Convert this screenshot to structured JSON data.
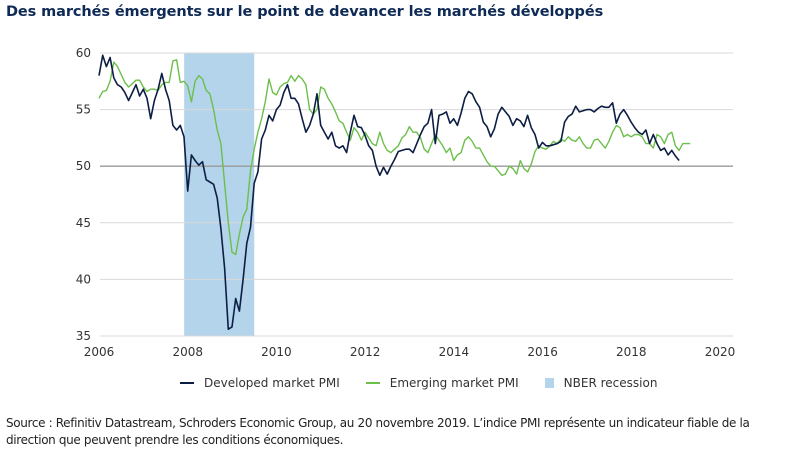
{
  "title": "Des marchés émergents sur le point de devancer les marchés développés",
  "source": "Source : Refinitiv Datastream, Schroders Economic Group, au 20 novembre 2019. L’indice PMI représente un indicateur fiable de la direction que peuvent prendre les conditions économiques.",
  "colors": {
    "developed": "#0d1e45",
    "emerging": "#6cbf4b",
    "recession": "#b3d4ea",
    "grid": "#d9d9d9",
    "axis50": "#9a9a9a"
  },
  "chart_data": {
    "type": "line",
    "title": "Des marchés émergents sur le point de devancer les marchés développés",
    "xlabel": "",
    "ylabel": "",
    "xlim": [
      2006,
      2020.3
    ],
    "ylim": [
      35,
      60
    ],
    "x_ticks": [
      "2006",
      "2008",
      "2010",
      "2012",
      "2014",
      "2016",
      "2018",
      "2020"
    ],
    "y_ticks": [
      "35",
      "40",
      "45",
      "50",
      "55",
      "60"
    ],
    "grid": true,
    "reference_line": 50,
    "legend_position": "bottom",
    "x_start": 2006.0,
    "x_step_years": 0.0833,
    "shaded_regions": [
      {
        "name": "NBER recession",
        "start": 2007.92,
        "end": 2009.5
      }
    ],
    "series": [
      {
        "name": "Developed market PMI",
        "values": [
          58.0,
          59.8,
          58.8,
          59.6,
          57.8,
          57.2,
          57.0,
          56.5,
          55.8,
          56.5,
          57.2,
          56.2,
          56.8,
          56.0,
          54.2,
          55.8,
          56.8,
          58.2,
          56.8,
          55.8,
          53.6,
          53.2,
          53.6,
          52.6,
          47.8,
          51.0,
          50.5,
          50.1,
          50.4,
          48.8,
          48.6,
          48.4,
          47.2,
          44.5,
          41.0,
          35.6,
          35.8,
          38.3,
          37.2,
          40.0,
          43.2,
          44.6,
          48.5,
          49.5,
          52.4,
          53.2,
          54.5,
          54.0,
          55.0,
          55.4,
          56.5,
          57.2,
          56.0,
          56.0,
          55.5,
          54.2,
          53.0,
          53.6,
          54.6,
          56.4,
          53.6,
          53.0,
          52.4,
          53.0,
          51.8,
          51.6,
          51.8,
          51.2,
          53.0,
          54.5,
          53.5,
          53.4,
          52.7,
          51.8,
          51.4,
          50.0,
          49.2,
          49.9,
          49.3,
          50.0,
          50.6,
          51.3,
          51.4,
          51.5,
          51.5,
          51.2,
          52.0,
          52.8,
          53.5,
          53.8,
          55.0,
          52.0,
          54.5,
          54.6,
          54.8,
          53.8,
          54.2,
          53.6,
          54.7,
          56.0,
          56.6,
          56.4,
          55.7,
          55.2,
          53.9,
          53.5,
          52.6,
          53.3,
          54.6,
          55.2,
          54.8,
          54.4,
          53.6,
          54.2,
          54.0,
          53.5,
          54.5,
          53.4,
          52.8,
          51.6,
          52.1,
          51.8,
          51.8,
          51.9,
          52.0,
          52.2,
          53.9,
          54.4,
          54.6,
          55.3,
          54.8,
          54.9,
          55.0,
          55.0,
          54.8,
          55.1,
          55.3,
          55.2,
          55.2,
          55.6,
          53.8,
          54.6,
          55.0,
          54.5,
          53.9,
          53.4,
          53.0,
          52.8,
          53.2,
          52.0,
          52.8,
          52.0,
          51.4,
          51.6,
          51.0,
          51.4,
          50.9,
          50.5
        ]
      },
      {
        "name": "Emerging market PMI",
        "values": [
          56.0,
          56.6,
          56.7,
          57.5,
          59.2,
          58.8,
          58.1,
          57.4,
          57.0,
          57.3,
          57.6,
          57.6,
          57.0,
          56.6,
          56.8,
          56.8,
          56.7,
          57.2,
          57.4,
          57.4,
          59.3,
          59.4,
          57.4,
          57.5,
          57.1,
          55.7,
          57.5,
          58.0,
          57.7,
          56.7,
          56.4,
          55.0,
          53.2,
          52.0,
          48.5,
          45.0,
          42.4,
          42.2,
          44.0,
          45.5,
          46.2,
          49.6,
          51.5,
          53.0,
          54.2,
          55.7,
          57.7,
          56.5,
          56.3,
          57.0,
          57.3,
          57.4,
          58.0,
          57.5,
          58.0,
          57.7,
          57.2,
          55.0,
          54.6,
          55.0,
          57.0,
          56.8,
          56.0,
          55.5,
          54.8,
          54.0,
          53.8,
          53.0,
          52.3,
          53.4,
          53.0,
          52.3,
          53.0,
          52.5,
          52.0,
          51.8,
          53.0,
          52.0,
          51.4,
          51.2,
          51.5,
          51.8,
          52.5,
          52.8,
          53.5,
          53.0,
          53.0,
          52.5,
          51.5,
          51.2,
          52.0,
          52.8,
          52.3,
          51.8,
          51.2,
          51.6,
          50.5,
          51.0,
          51.2,
          52.3,
          52.6,
          52.2,
          51.6,
          51.6,
          51.0,
          50.4,
          50.0,
          50.0,
          49.6,
          49.2,
          49.3,
          50.0,
          49.8,
          49.3,
          50.5,
          49.8,
          49.5,
          50.2,
          51.3,
          51.8,
          51.6,
          51.5,
          51.8,
          52.2,
          52.0,
          52.4,
          52.2,
          52.6,
          52.3,
          52.2,
          52.6,
          52.0,
          51.6,
          51.6,
          52.3,
          52.4,
          52.0,
          51.6,
          52.2,
          53.0,
          53.6,
          53.4,
          52.6,
          52.8,
          52.6,
          52.8,
          52.8,
          52.6,
          52.0,
          52.0,
          51.6,
          52.8,
          52.6,
          52.0,
          52.8,
          53.0,
          51.8,
          51.4,
          52.0,
          52.0,
          52.0
        ]
      }
    ]
  },
  "legend": [
    {
      "label": "Developed market PMI",
      "kind": "line"
    },
    {
      "label": "Emerging market PMI",
      "kind": "line"
    },
    {
      "label": "NBER recession",
      "kind": "box"
    }
  ]
}
